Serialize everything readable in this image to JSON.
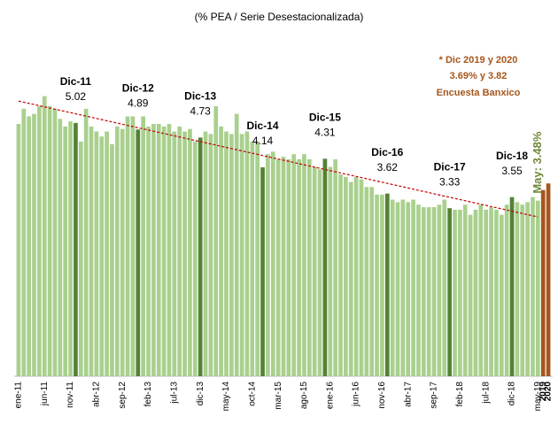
{
  "chart_data": {
    "type": "bar",
    "title": "(% PEA / Serie Desestacionalizada)",
    "note": [
      "* Dic 2019 y 2020",
      "3.69% y 3.82",
      "Encuesta Banxico"
    ],
    "categories": [
      "ene-11",
      null,
      null,
      null,
      null,
      "jun-11",
      null,
      null,
      null,
      null,
      "nov-11",
      null,
      null,
      null,
      null,
      "abr-12",
      null,
      null,
      null,
      null,
      "sep-12",
      null,
      null,
      null,
      null,
      "feb-13",
      null,
      null,
      null,
      null,
      "jul-13",
      null,
      null,
      null,
      null,
      "dic-13",
      null,
      null,
      null,
      null,
      "may-14",
      null,
      null,
      null,
      null,
      "oct-14",
      null,
      null,
      null,
      null,
      "mar-15",
      null,
      null,
      null,
      null,
      "ago-15",
      null,
      null,
      null,
      null,
      "ene-16",
      null,
      null,
      null,
      null,
      "jun-16",
      null,
      null,
      null,
      null,
      "nov-16",
      null,
      null,
      null,
      null,
      "abr-17",
      null,
      null,
      null,
      null,
      "sep-17",
      null,
      null,
      null,
      null,
      "feb-18",
      null,
      null,
      null,
      null,
      "jul-18",
      null,
      null,
      null,
      null,
      "dic-18",
      null,
      null,
      null,
      null,
      "may-19",
      "2019",
      "2020"
    ],
    "values": [
      5.0,
      5.3,
      5.15,
      5.2,
      5.35,
      5.55,
      5.35,
      5.3,
      5.1,
      4.95,
      5.05,
      5.02,
      4.65,
      5.3,
      4.95,
      4.85,
      4.75,
      4.85,
      4.6,
      4.95,
      4.9,
      5.15,
      5.15,
      4.89,
      5.15,
      4.95,
      5.0,
      5.0,
      4.95,
      5.0,
      4.85,
      4.95,
      4.85,
      4.9,
      4.65,
      4.73,
      4.85,
      4.8,
      5.35,
      4.95,
      4.85,
      4.8,
      5.2,
      4.8,
      4.85,
      4.65,
      4.65,
      4.14,
      4.4,
      4.45,
      4.3,
      4.35,
      4.3,
      4.4,
      4.3,
      4.4,
      4.3,
      4.15,
      4.1,
      4.31,
      4.15,
      4.3,
      4.0,
      3.95,
      3.85,
      3.95,
      3.9,
      3.75,
      3.75,
      3.6,
      3.6,
      3.62,
      3.5,
      3.45,
      3.5,
      3.45,
      3.5,
      3.4,
      3.35,
      3.35,
      3.35,
      3.4,
      3.5,
      3.33,
      3.3,
      3.3,
      3.4,
      3.2,
      3.3,
      3.4,
      3.3,
      3.35,
      3.3,
      3.2,
      3.4,
      3.55,
      3.45,
      3.4,
      3.45,
      3.55,
      3.48,
      3.69,
      3.82
    ],
    "labels": [
      null,
      null,
      null,
      null,
      null,
      null,
      null,
      null,
      null,
      null,
      null,
      "Dic-11",
      null,
      null,
      null,
      null,
      null,
      null,
      null,
      null,
      null,
      null,
      null,
      "Dic-12",
      null,
      null,
      null,
      null,
      null,
      null,
      null,
      null,
      null,
      null,
      null,
      "Dic-13",
      null,
      null,
      null,
      null,
      null,
      null,
      null,
      null,
      null,
      null,
      null,
      "Dic-14",
      null,
      null,
      null,
      null,
      null,
      null,
      null,
      null,
      null,
      null,
      null,
      "Dic-15",
      null,
      null,
      null,
      null,
      null,
      null,
      null,
      null,
      null,
      null,
      null,
      "Dic-16",
      null,
      null,
      null,
      null,
      null,
      null,
      null,
      null,
      null,
      null,
      null,
      "Dic-17",
      null,
      null,
      null,
      null,
      null,
      null,
      null,
      null,
      null,
      null,
      null,
      "Dic-18",
      null,
      null,
      null,
      null,
      null,
      null,
      null
    ],
    "value_labels": [
      null,
      null,
      null,
      null,
      null,
      null,
      null,
      null,
      null,
      null,
      null,
      "5.02",
      null,
      null,
      null,
      null,
      null,
      null,
      null,
      null,
      null,
      null,
      null,
      "4.89",
      null,
      null,
      null,
      null,
      null,
      null,
      null,
      null,
      null,
      null,
      null,
      "4.73",
      null,
      null,
      null,
      null,
      null,
      null,
      null,
      null,
      null,
      null,
      null,
      "4.14",
      null,
      null,
      null,
      null,
      null,
      null,
      null,
      null,
      null,
      null,
      null,
      "4.31",
      null,
      null,
      null,
      null,
      null,
      null,
      null,
      null,
      null,
      null,
      null,
      "3.62",
      null,
      null,
      null,
      null,
      null,
      null,
      null,
      null,
      null,
      null,
      null,
      "3.33",
      null,
      null,
      null,
      null,
      null,
      null,
      null,
      null,
      null,
      null,
      null,
      "3.55",
      null,
      null,
      null,
      null,
      "May: 3.48%",
      null,
      null
    ],
    "color": "#a9d08e",
    "december_color": "#548235",
    "forecast_color": "#a5561c",
    "trend_color": "#c00000",
    "ylim": [
      0,
      6
    ]
  }
}
